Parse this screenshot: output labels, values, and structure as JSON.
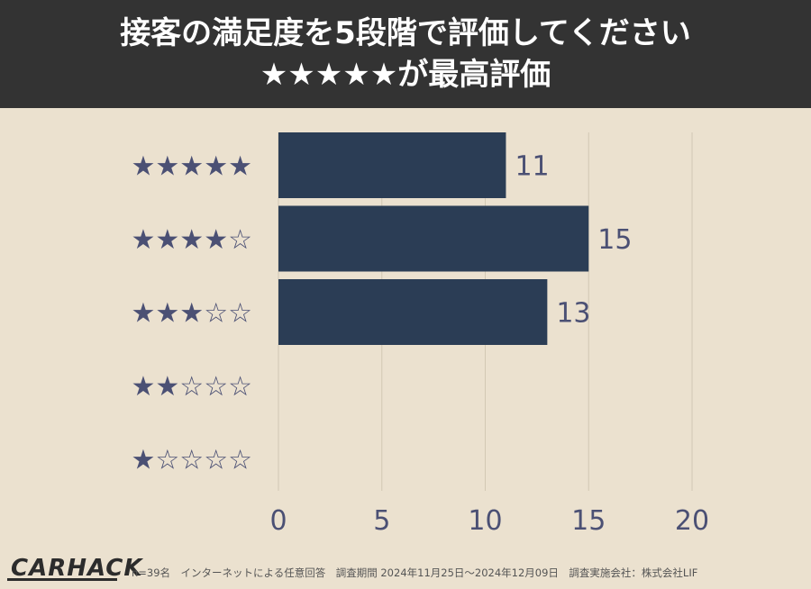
{
  "header": {
    "title_line1": "接客の満足度を5段階で評価してください",
    "title_line2": "★★★★★が最高評価"
  },
  "chart_data": {
    "type": "bar",
    "orientation": "horizontal",
    "categories": [
      "★★★★★",
      "★★★★☆",
      "★★★☆☆",
      "★★☆☆☆",
      "★☆☆☆☆"
    ],
    "values": [
      11,
      15,
      13,
      0,
      0
    ],
    "value_labels": [
      "11",
      "15",
      "13",
      "",
      ""
    ],
    "xlim": [
      0,
      20
    ],
    "xticks": [
      "0",
      "5",
      "10",
      "15",
      "20"
    ],
    "grid": true,
    "bar_color": "#2b3d55",
    "star_color": "#4b5074",
    "background_color": "#ebe1cf"
  },
  "footer": {
    "logo": "CARHACK",
    "note": "n=39名　インターネットによる任意回答　調査期間 2024年11月25日〜2024年12月09日　調査実施会社：株式会社LIF"
  }
}
